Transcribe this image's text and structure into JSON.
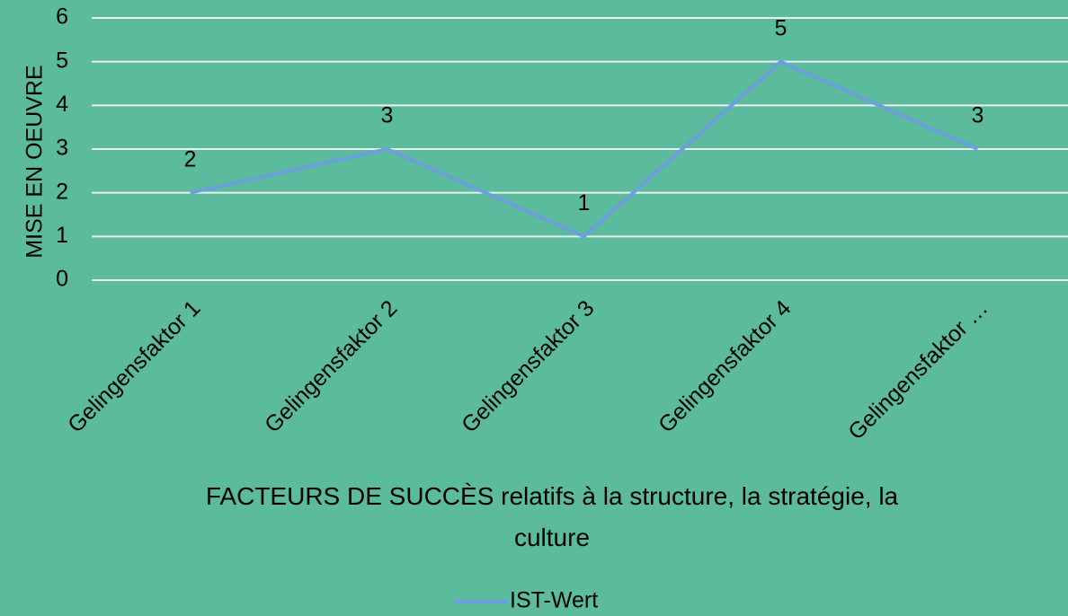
{
  "chart_data": {
    "type": "line",
    "categories": [
      "Gelingensfaktor 1",
      "Gelingensfaktor 2",
      "Gelingensfaktor 3",
      "Gelingensfaktor 4",
      "Gelingensfaktor …"
    ],
    "series": [
      {
        "name": "IST-Wert",
        "color": "#6c9fdc",
        "values": [
          2,
          3,
          1,
          5,
          3
        ]
      }
    ],
    "y_label": "MISE EN OEUVRE",
    "x_label": "FACTEURS DE SUCCÈS relatifs à la structure, la stratégie, la culture",
    "ylim": [
      0,
      6
    ],
    "yticks": [
      0,
      1,
      2,
      3,
      4,
      5,
      6
    ],
    "grid": true,
    "legend": "bottom",
    "background": "#5bbb9c"
  }
}
